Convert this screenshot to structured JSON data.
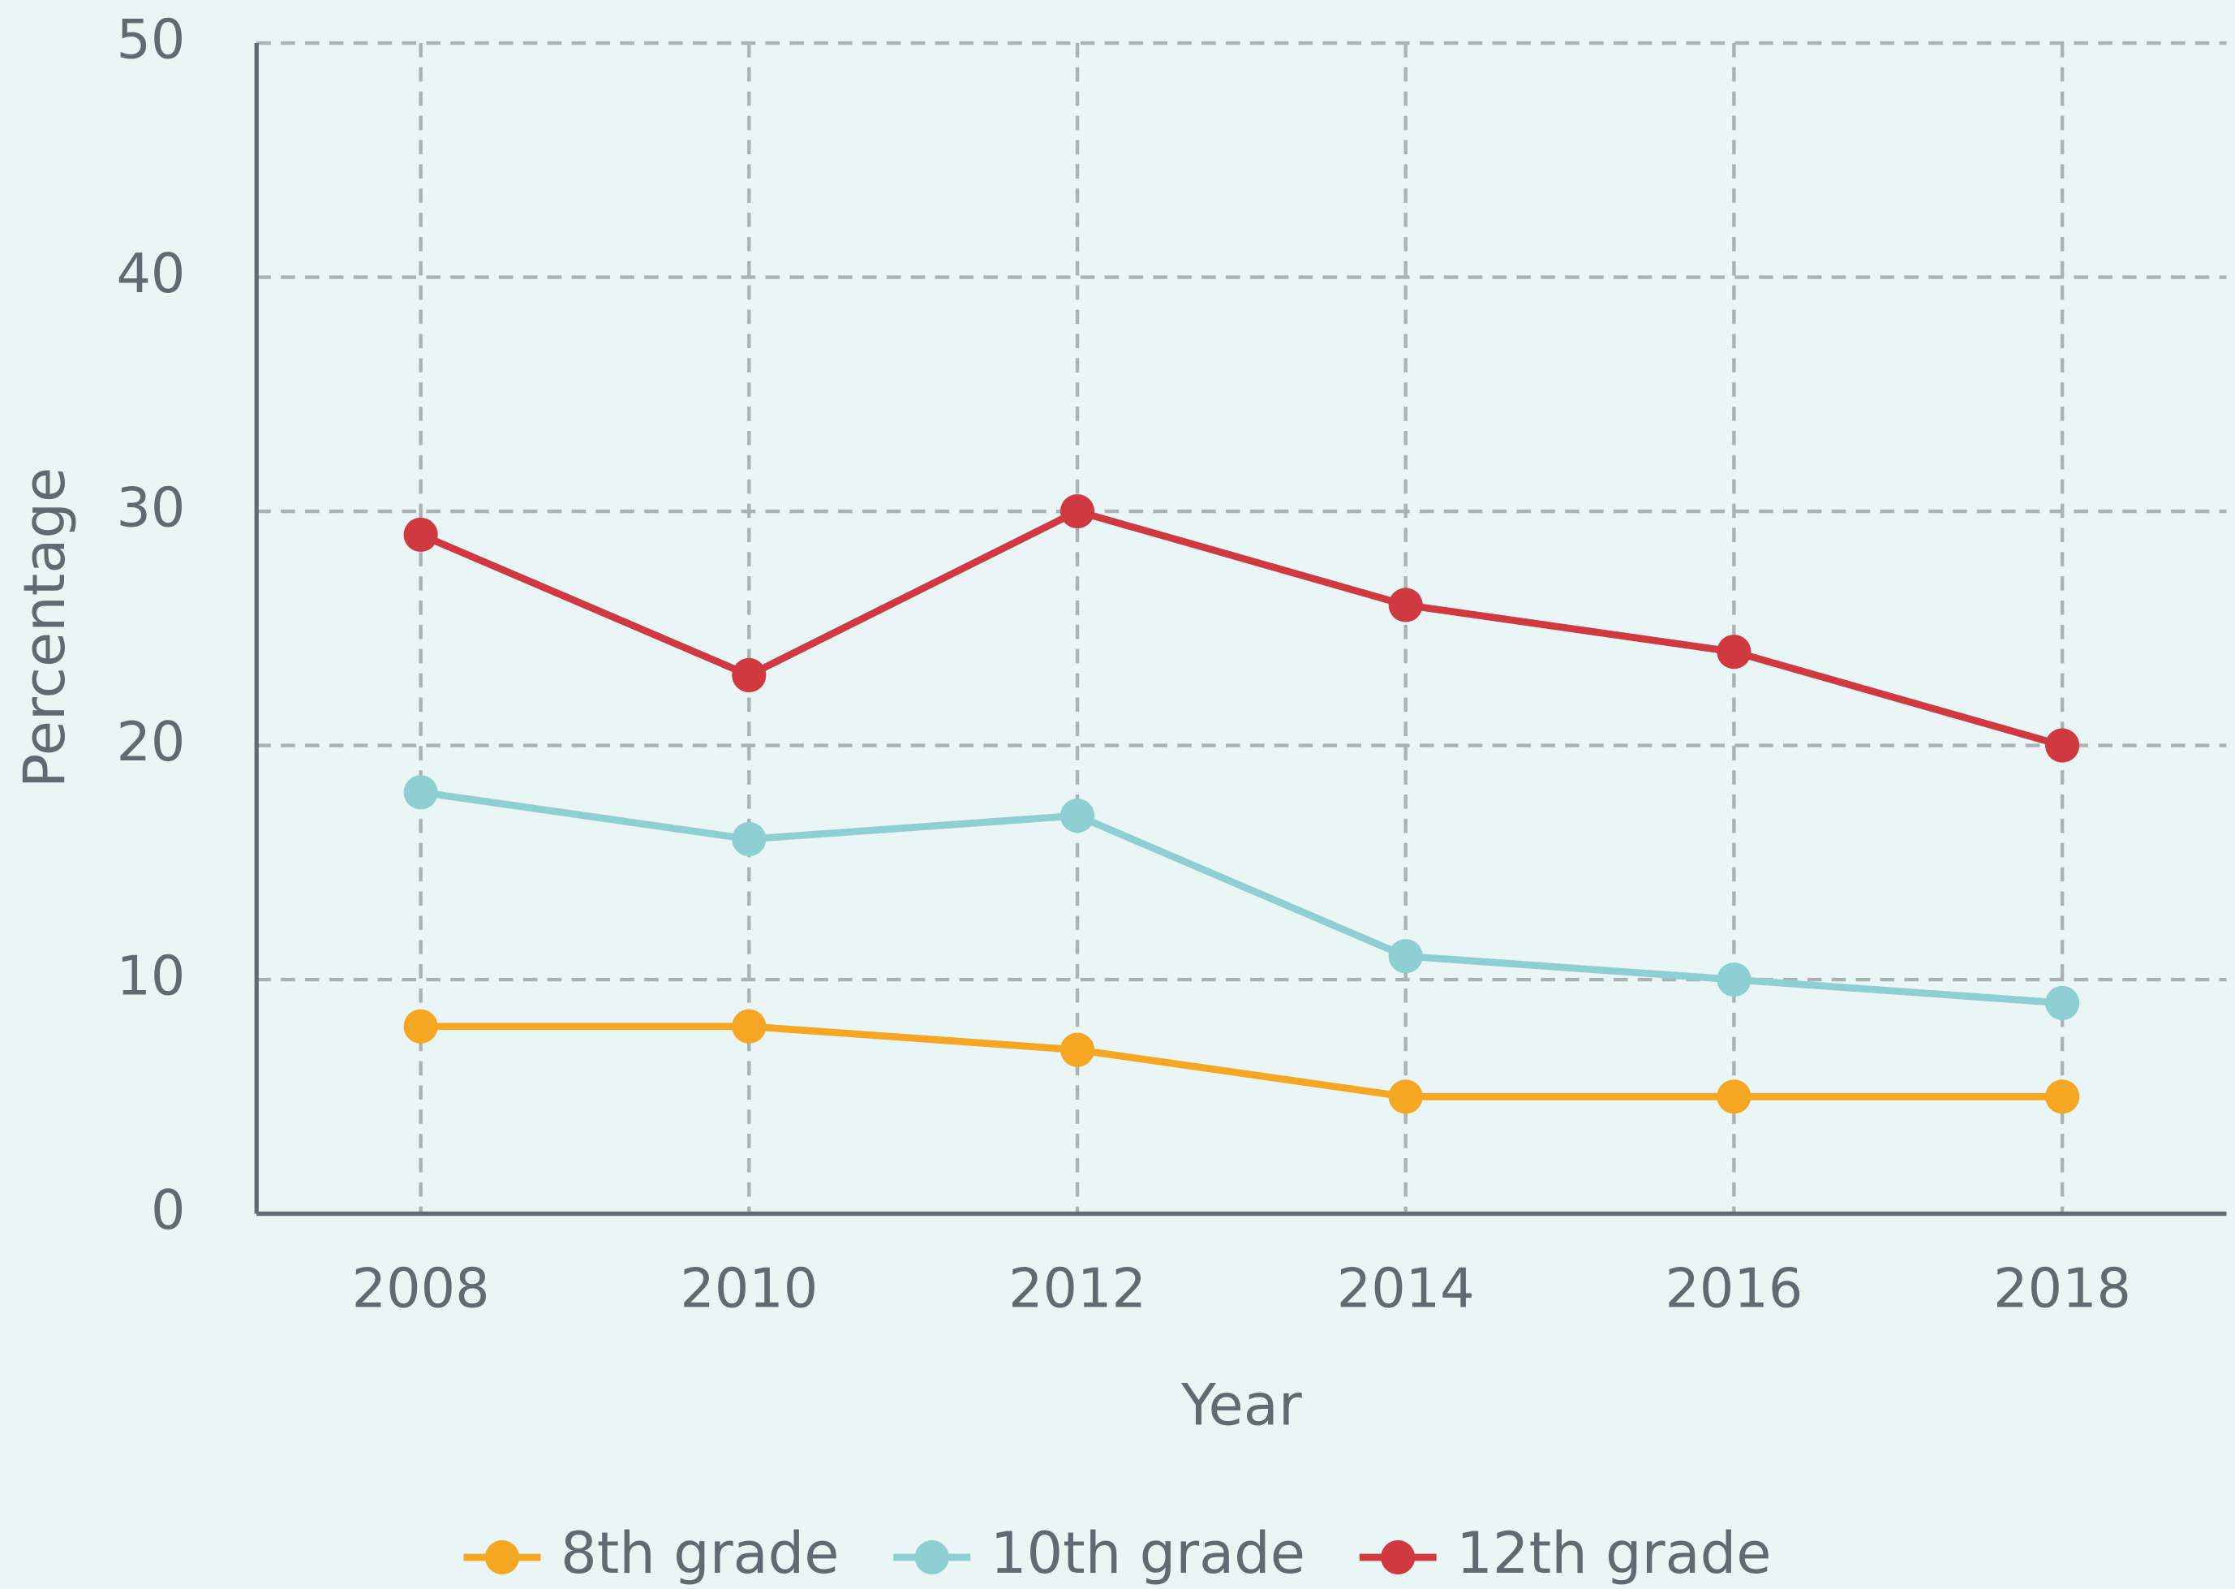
{
  "chart_data": {
    "type": "line",
    "x_label": "Year",
    "y_label": "Percentage",
    "x": [
      2008,
      2010,
      2012,
      2014,
      2016,
      2018
    ],
    "series": [
      {
        "name": "8th grade",
        "color": "#f5a623",
        "values": [
          8,
          8,
          7,
          5,
          5,
          5
        ]
      },
      {
        "name": "10th grade",
        "color": "#8ecfd4",
        "values": [
          18,
          16,
          17,
          11,
          10,
          9
        ]
      },
      {
        "name": "12th grade",
        "color": "#d0393f",
        "values": [
          29,
          23,
          30,
          26,
          24,
          20
        ]
      }
    ],
    "xlim": [
      2007,
      2019
    ],
    "xticks": [
      2008,
      2010,
      2012,
      2014,
      2016,
      2018
    ],
    "ylim": [
      0,
      50
    ],
    "yticks": [
      0,
      10,
      20,
      30,
      40,
      50
    ],
    "grid": true,
    "legend": "bottom"
  }
}
